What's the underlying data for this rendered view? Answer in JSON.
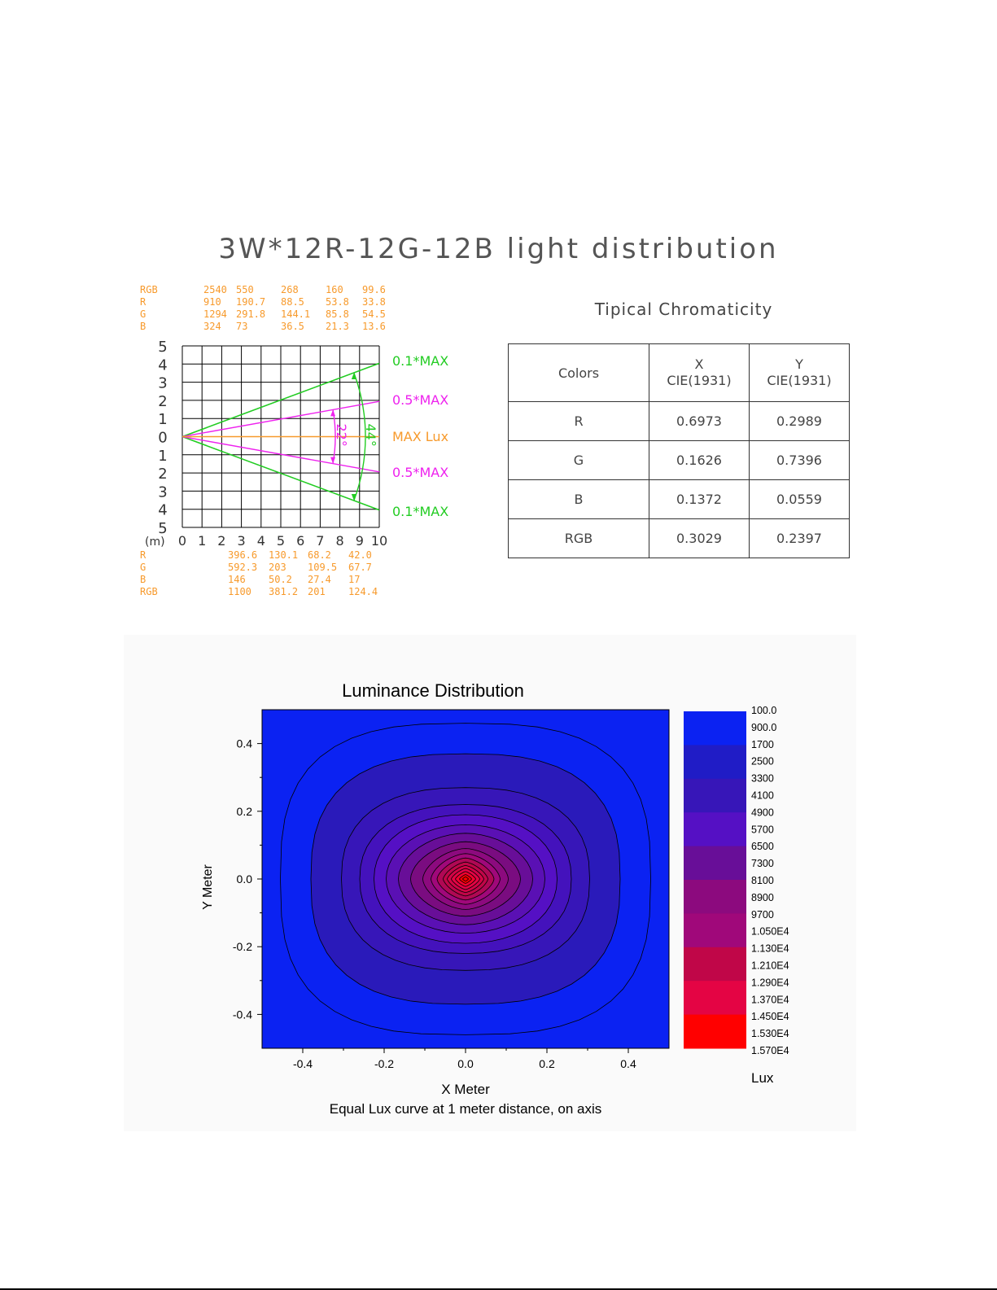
{
  "title": "3W*12R-12G-12B light distribution",
  "distribution": {
    "top_table": [
      {
        "label": "RGB",
        "values": [
          "2540",
          "550",
          "268",
          "160",
          "99.6"
        ]
      },
      {
        "label": "R",
        "values": [
          "910",
          "190.7",
          "88.5",
          "53.8",
          "33.8"
        ]
      },
      {
        "label": "G",
        "values": [
          "1294",
          "291.8",
          "144.1",
          "85.8",
          "54.5"
        ]
      },
      {
        "label": "B",
        "values": [
          "324",
          "73",
          "36.5",
          "21.3",
          "13.6"
        ]
      }
    ],
    "bottom_table": [
      {
        "label": "R",
        "values": [
          "396.6",
          "130.1",
          "68.2",
          "42.0"
        ]
      },
      {
        "label": "G",
        "values": [
          "592.3",
          "203",
          "109.5",
          "67.7"
        ]
      },
      {
        "label": "B",
        "values": [
          "146",
          "50.2",
          "27.4",
          "17"
        ]
      },
      {
        "label": "RGB",
        "values": [
          "1100",
          "381.2",
          "201",
          "124.4"
        ]
      }
    ],
    "y_tick_labels": [
      "5",
      "4",
      "3",
      "2",
      "1",
      "0",
      "1",
      "2",
      "3",
      "4",
      "5"
    ],
    "x_tick_labels": [
      "0",
      "1",
      "2",
      "3",
      "4",
      "5",
      "6",
      "7",
      "8",
      "9",
      "10"
    ],
    "x_unit": "(m)",
    "line_labels": {
      "outer_top": "0.1*MAX",
      "inner_top": "0.5*MAX",
      "center": "MAX Lux",
      "inner_bottom": "0.5*MAX",
      "outer_bottom": "0.1*MAX"
    },
    "angles": {
      "inner": "22°",
      "outer": "44°"
    },
    "colors": {
      "grid": "#000000",
      "outer": "#22cc22",
      "inner": "#ee22ee",
      "center": "#f79a2c",
      "text": "#f79a2c"
    }
  },
  "chromaticity": {
    "title": "Tipical Chromaticity",
    "headers": {
      "colors": "Colors",
      "x_line1": "X",
      "x_line2": "CIE(1931)",
      "y_line1": "Y",
      "y_line2": "CIE(1931)"
    },
    "rows": [
      {
        "color": "R",
        "x": "0.6973",
        "y": "0.2989"
      },
      {
        "color": "G",
        "x": "0.1626",
        "y": "0.7396"
      },
      {
        "color": "B",
        "x": "0.1372",
        "y": "0.0559"
      },
      {
        "color": "RGB",
        "x": "0.3029",
        "y": "0.2397"
      }
    ]
  },
  "chart_data": [
    {
      "type": "line",
      "chart": "light distribution (beam angle diagram)",
      "xlim": [
        0,
        10
      ],
      "ylim": [
        -5,
        5
      ],
      "x_unit": "(m)",
      "series": [
        {
          "name": "0.1*MAX",
          "x": [
            0,
            10
          ],
          "y_upper": [
            0,
            4.04
          ],
          "y_lower": [
            0,
            -4.04
          ]
        },
        {
          "name": "0.5*MAX",
          "x": [
            0,
            10
          ],
          "y_upper": [
            0,
            1.94
          ],
          "y_lower": [
            0,
            -1.94
          ]
        },
        {
          "name": "MAX Lux",
          "x": [
            0,
            10
          ],
          "y": [
            0,
            0
          ]
        }
      ],
      "angles_deg": {
        "0.5*MAX": 22,
        "0.1*MAX": 44
      },
      "grid": true
    },
    {
      "type": "heatmap",
      "title": "Luminance Distribution",
      "xlabel": "X  Meter",
      "ylabel": "Y Meter",
      "caption": "Equal Lux curve at 1 meter distance, on axis",
      "xlim": [
        -0.5,
        0.5
      ],
      "ylim": [
        -0.5,
        0.5
      ],
      "x_ticks": [
        "-0.4",
        "-0.2",
        "0.0",
        "0.2",
        "0.4"
      ],
      "y_ticks": [
        "0.4",
        "0.2",
        "0.0",
        "-0.2",
        "-0.4"
      ],
      "legend_unit": "Lux",
      "levels": [
        "100.0",
        "900.0",
        "1700",
        "2500",
        "3300",
        "4100",
        "4900",
        "5700",
        "6500",
        "7300",
        "8100",
        "8900",
        "9700",
        "1.050E4",
        "1.130E4",
        "1.210E4",
        "1.290E4",
        "1.370E4",
        "1.450E4",
        "1.530E4",
        "1.570E4"
      ],
      "level_colors": [
        "#0b22f2",
        "#201cc6",
        "#2a1aba",
        "#3716b8",
        "#4412bc",
        "#5510c4",
        "#5a10b4",
        "#680e98",
        "#7a0c80",
        "#8c0a7e",
        "#a0087a",
        "#b00854",
        "#c00648",
        "#d20446",
        "#e40444",
        "#f00230",
        "#ff0000"
      ],
      "center": [
        0,
        0
      ],
      "contour_radii_x": [
        0.455,
        0.38,
        0.305,
        0.26,
        0.225,
        0.195,
        0.165,
        0.135,
        0.105,
        0.085,
        0.07,
        0.055,
        0.045,
        0.035,
        0.025,
        0.015,
        0.007
      ],
      "contour_radii_y": [
        0.46,
        0.37,
        0.27,
        0.22,
        0.19,
        0.16,
        0.135,
        0.11,
        0.09,
        0.075,
        0.062,
        0.05,
        0.04,
        0.031,
        0.022,
        0.013,
        0.006
      ]
    }
  ]
}
